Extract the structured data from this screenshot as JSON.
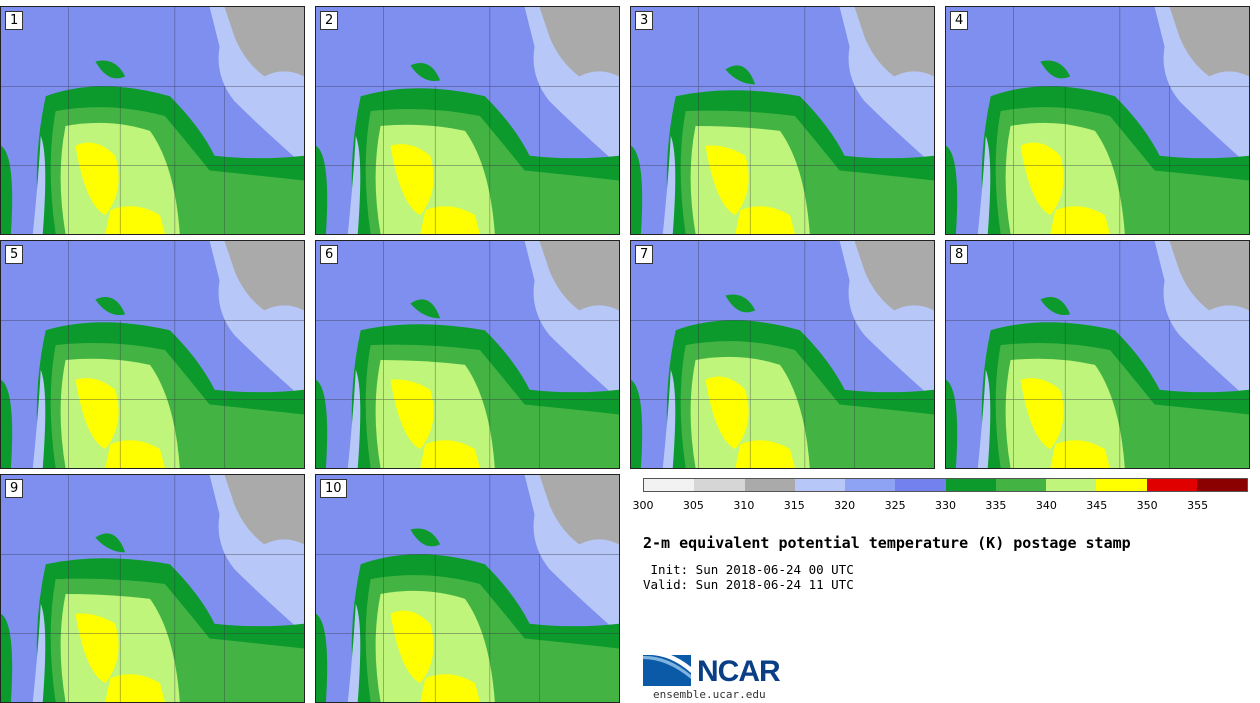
{
  "panels": [
    "1",
    "2",
    "3",
    "4",
    "5",
    "6",
    "7",
    "8",
    "9",
    "10"
  ],
  "colorbar": {
    "colors": [
      "#f2f2f2",
      "#d6d6d6",
      "#aaaaaa",
      "#b7c8f8",
      "#8ea3f4",
      "#7281ee",
      "#0c9a2c",
      "#43b443",
      "#bef57a",
      "#ffff00",
      "#e00000",
      "#8b0000"
    ],
    "ticks": [
      "300",
      "305",
      "310",
      "315",
      "320",
      "325",
      "330",
      "335",
      "340",
      "345",
      "350",
      "355"
    ]
  },
  "title": "2-m equivalent potential temperature (K) postage stamp",
  "init": " Init: Sun 2018-06-24 00 UTC",
  "valid": "Valid: Sun 2018-06-24 11 UTC",
  "logo": {
    "text": "NCAR",
    "url": "ensemble.ucar.edu"
  }
}
